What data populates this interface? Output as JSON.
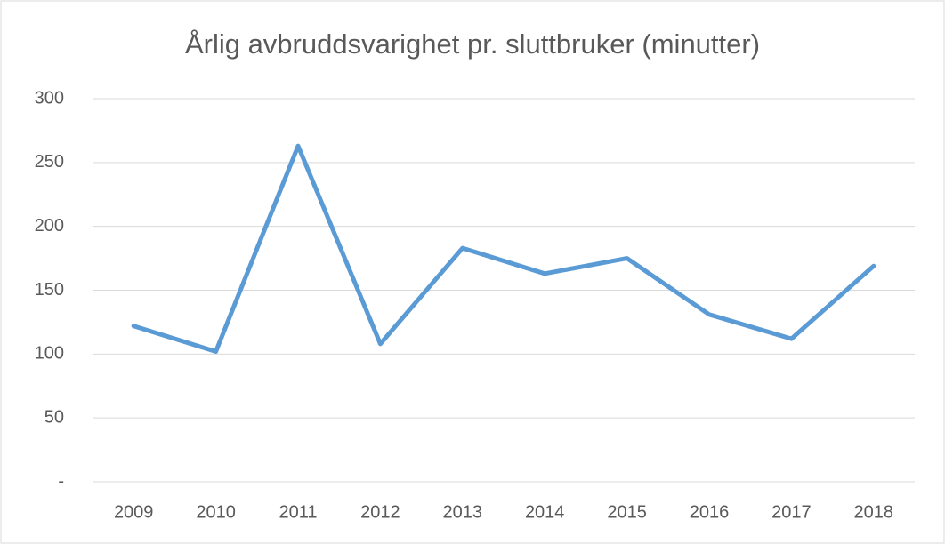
{
  "chart_data": {
    "type": "line",
    "title": "Årlig avbruddsvarighet pr. sluttbruker (minutter)",
    "categories": [
      "2009",
      "2010",
      "2011",
      "2012",
      "2013",
      "2014",
      "2015",
      "2016",
      "2017",
      "2018"
    ],
    "values": [
      122,
      102,
      263,
      108,
      183,
      163,
      175,
      131,
      112,
      169
    ],
    "color": "#5b9bd5",
    "ylim": [
      0,
      300
    ],
    "yticks": [
      {
        "value": 0,
        "label": "-"
      },
      50,
      100,
      150,
      200,
      250,
      300
    ],
    "grid": true
  }
}
